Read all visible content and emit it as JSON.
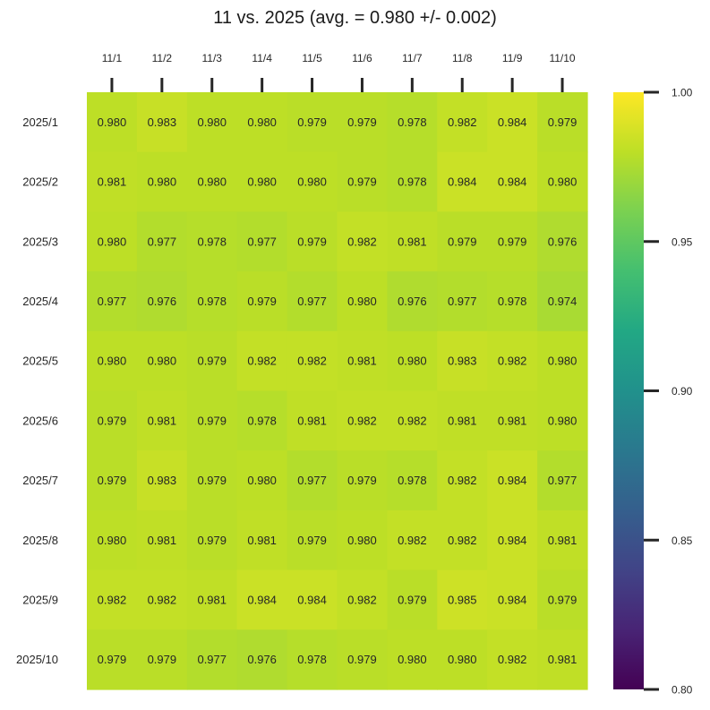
{
  "chart_data": {
    "type": "heatmap",
    "title": "11 vs. 2025 (avg. = 0.980 +/- 0.002)",
    "x_labels": [
      "11/1",
      "11/2",
      "11/3",
      "11/4",
      "11/5",
      "11/6",
      "11/7",
      "11/8",
      "11/9",
      "11/10"
    ],
    "y_labels": [
      "2025/1",
      "2025/2",
      "2025/3",
      "2025/4",
      "2025/5",
      "2025/6",
      "2025/7",
      "2025/8",
      "2025/9",
      "2025/10"
    ],
    "values": [
      [
        0.98,
        0.983,
        0.98,
        0.98,
        0.979,
        0.979,
        0.978,
        0.982,
        0.984,
        0.979
      ],
      [
        0.981,
        0.98,
        0.98,
        0.98,
        0.98,
        0.979,
        0.978,
        0.984,
        0.984,
        0.98
      ],
      [
        0.98,
        0.977,
        0.978,
        0.977,
        0.979,
        0.982,
        0.981,
        0.979,
        0.979,
        0.976
      ],
      [
        0.977,
        0.976,
        0.978,
        0.979,
        0.977,
        0.98,
        0.976,
        0.977,
        0.978,
        0.974
      ],
      [
        0.98,
        0.98,
        0.979,
        0.982,
        0.982,
        0.981,
        0.98,
        0.983,
        0.982,
        0.98
      ],
      [
        0.979,
        0.981,
        0.979,
        0.978,
        0.981,
        0.982,
        0.982,
        0.981,
        0.981,
        0.98
      ],
      [
        0.979,
        0.983,
        0.979,
        0.98,
        0.977,
        0.979,
        0.978,
        0.982,
        0.984,
        0.977
      ],
      [
        0.98,
        0.981,
        0.979,
        0.981,
        0.979,
        0.98,
        0.982,
        0.982,
        0.984,
        0.981
      ],
      [
        0.982,
        0.982,
        0.981,
        0.984,
        0.984,
        0.982,
        0.979,
        0.985,
        0.984,
        0.979
      ],
      [
        0.979,
        0.979,
        0.977,
        0.976,
        0.978,
        0.979,
        0.98,
        0.98,
        0.982,
        0.981
      ]
    ],
    "value_format_decimals": 3,
    "colorscale": "viridis",
    "color_range": [
      0.8,
      1.0
    ],
    "colorbar_ticks": [
      "0.80",
      "0.85",
      "0.90",
      "0.95",
      "1.00"
    ],
    "x_axis_position": "top",
    "grid": false
  }
}
